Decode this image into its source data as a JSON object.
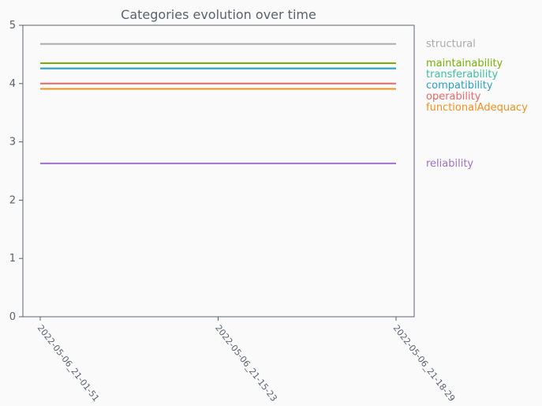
{
  "chart_data": {
    "type": "line",
    "title": "Categories evolution over time",
    "xlabel": "",
    "ylabel": "",
    "x": [
      "2022-05-06_21-01-51",
      "2022-05-06_21-15-23",
      "2022-05-06_21-18-29"
    ],
    "ylim": [
      0,
      5
    ],
    "yticks": [
      0,
      1,
      2,
      3,
      4,
      5
    ],
    "grid": false,
    "legend": "right",
    "series": [
      {
        "name": "structural",
        "color": "#aaaaaa",
        "values": [
          4.68,
          4.68,
          4.68
        ]
      },
      {
        "name": "maintainability",
        "color": "#77b000",
        "values": [
          4.35,
          4.35,
          4.35
        ]
      },
      {
        "name": "transferability",
        "color": "#3cbfa0",
        "values": [
          4.26,
          4.26,
          4.26
        ]
      },
      {
        "name": "compatibility",
        "color": "#2aa0c8",
        "values": [
          4.26,
          4.26,
          4.26
        ]
      },
      {
        "name": "operability",
        "color": "#ee6666",
        "values": [
          4.0,
          4.0,
          4.0
        ]
      },
      {
        "name": "functionalAdequacy",
        "color": "#f0901e",
        "values": [
          3.91,
          3.91,
          3.91
        ]
      },
      {
        "name": "reliability",
        "color": "#a070cc",
        "values": [
          2.63,
          2.63,
          2.63
        ]
      }
    ]
  }
}
